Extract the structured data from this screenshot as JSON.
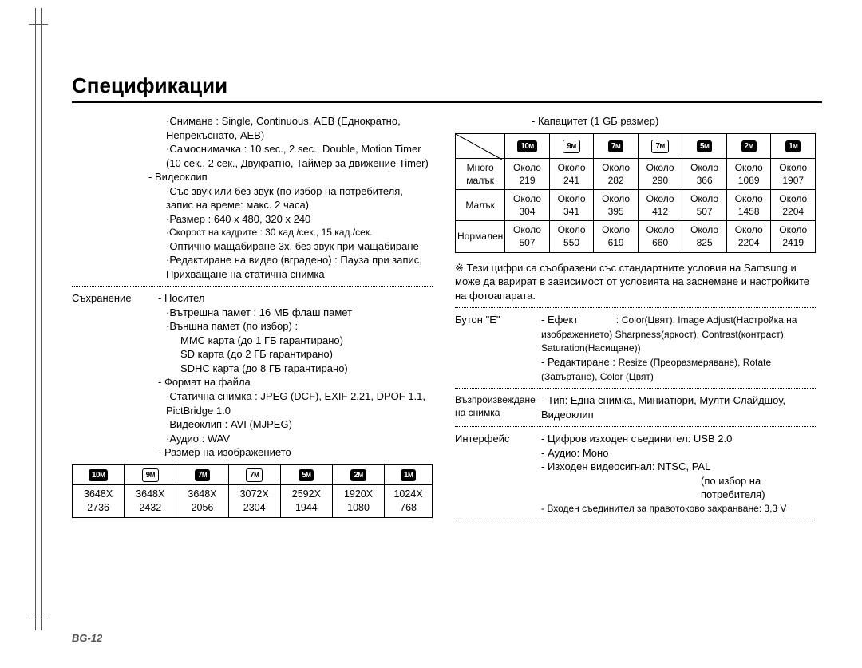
{
  "title": "Спецификации",
  "page_number": "BG-12",
  "left_col": {
    "shooting_label": "·Снимане :",
    "shooting_value": "Single, Continuous, AEB (Еднократно, Непрекъснато, AEB)",
    "selftimer_label": "·Самоснимачка :",
    "selftimer_value": "10 sec., 2 sec., Double, Motion Timer (10 сек., 2 сек., Двукратно, Таймер за движение Timer)",
    "video_header": "- Видеоклип",
    "video_sound": "·Със звук или без звук (по избор на потребителя, запис на време: макс. 2 часа)",
    "video_size": "·Размер : 640 x 480, 320 x 240",
    "video_fps": "·Скорост на кадрите : 30 кад./сек., 15 кад./сек.",
    "video_zoom": "·Оптично мащабиране 3x, без звук при мащабиране",
    "video_edit": "·Редактиране на видео (вградено) : Пауза при запис, Прихващане на статична снимка",
    "storage_label": "Съхранение",
    "storage_media_header": "- Носител",
    "storage_internal": "·Вътрешна памет : 16 МБ флаш памет",
    "storage_external_header": "·Външна памет (по избор) :",
    "storage_mmc": "MMC карта (до 1 ГБ гарантирано)",
    "storage_sd": "SD карта (до 2 ГБ гарантирано)",
    "storage_sdhc": "SDHC карта (до 8 ГБ гарантирано)",
    "fileformat_header": "- Формат на файла",
    "ff_still": "·Статична снимка : JPEG (DCF), EXIF 2.21, DPOF 1.1, PictBridge 1.0",
    "ff_video": "·Видеоклип : AVI (MJPEG)",
    "ff_audio": "·Аудио : WAV",
    "imgsize_header": "- Размер на изображението",
    "size_headers_mp": [
      "10",
      "9",
      "7",
      "7",
      "5",
      "2",
      "1"
    ],
    "size_table": [
      "3648X 2736",
      "3648X 2432",
      "3648X 2056",
      "3072X 2304",
      "2592X 1944",
      "1920X 1080",
      "1024X 768"
    ]
  },
  "right_col": {
    "capacity_header": "- Капацитет (1 GБ размер)",
    "cap_headers_mp": [
      "10",
      "9",
      "7",
      "7",
      "5",
      "2",
      "1"
    ],
    "cap_rows": [
      {
        "label": "Много малък",
        "vals": [
          "Около 219",
          "Около 241",
          "Около 282",
          "Около 290",
          "Около 366",
          "Около 1089",
          "Около 1907"
        ]
      },
      {
        "label": "Малък",
        "vals": [
          "Около 304",
          "Около 341",
          "Около 395",
          "Около 412",
          "Около 507",
          "Около 1458",
          "Около 2204"
        ]
      },
      {
        "label": "Нормален",
        "vals": [
          "Около 507",
          "Около 550",
          "Около 619",
          "Около 660",
          "Около 825",
          "Около 2204",
          "Около 2419"
        ]
      }
    ],
    "note": "※ Тези цифри са съобразени със стандартните условия на Samsung и може да варират в зависимост от условията на заснемане и настройките на фотоапарата.",
    "ebutton_label": "Бутон \"E\"",
    "effect_label": "- Ефект",
    "effect_value": "Color(Цвят), Image Adjust(Настройка на изображението) Sharpness(яркост), Contrast(контраст), Saturation(Насищане))",
    "edit_label": "- Редактиране :",
    "edit_value": "Resize (Преоразмеряване), Rotate (Завъртане), Color (Цвят)",
    "playback_label": "Възпроизвеждане на снимка",
    "playback_value": "- Тип: Една снимка, Миниатюри, Мулти-Слайдшоу, Видеоклип",
    "interface_label": "Интерфейс",
    "if_usb": "- Цифров изходен съединител: USB 2.0",
    "if_audio": "- Аудио: Моно",
    "if_video": "- Изходен видеосигнал: NTSC, PAL",
    "if_video_note": "(по избор на потребителя)",
    "if_power": "- Входен съединител за правотоково захранване: 3,3 V"
  }
}
